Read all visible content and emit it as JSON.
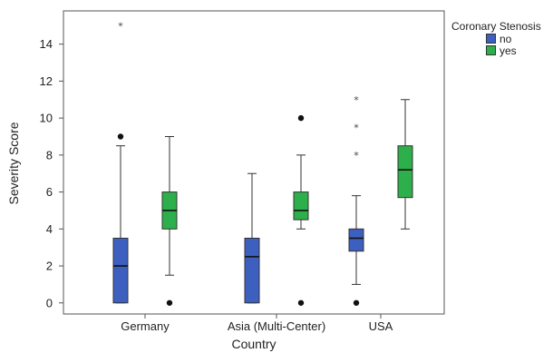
{
  "chart_data": {
    "type": "box",
    "xlabel": "Country",
    "ylabel": "Severity Score",
    "ylim": [
      -0.6,
      15.8
    ],
    "yticks": [
      0,
      2,
      4,
      6,
      8,
      10,
      12,
      14
    ],
    "categories": [
      "Germany",
      "Asia (Multi-Center)",
      "USA"
    ],
    "legend": {
      "title": "Coronary Stenosis",
      "position": "top-right",
      "items": [
        {
          "label": "no",
          "color": "#3d5fbf"
        },
        {
          "label": "yes",
          "color": "#2db04b"
        }
      ]
    },
    "series": [
      {
        "name": "no",
        "color": "#3d5fbf",
        "boxes": [
          {
            "category": "Germany",
            "min": 0,
            "q1": 0,
            "median": 2,
            "q3": 3.5,
            "max": 8.5,
            "outliers": [
              {
                "value": 9,
                "kind": "dot"
              },
              {
                "value": 15,
                "kind": "star"
              }
            ]
          },
          {
            "category": "Asia (Multi-Center)",
            "min": 0,
            "q1": 0,
            "median": 2.5,
            "q3": 3.5,
            "max": 7,
            "outliers": []
          },
          {
            "category": "USA",
            "min": 1,
            "q1": 2.8,
            "median": 3.5,
            "q3": 4,
            "max": 5.8,
            "outliers": [
              {
                "value": 0,
                "kind": "dot"
              },
              {
                "value": 8,
                "kind": "star"
              },
              {
                "value": 9.5,
                "kind": "star"
              },
              {
                "value": 11,
                "kind": "star"
              }
            ]
          }
        ]
      },
      {
        "name": "yes",
        "color": "#2db04b",
        "boxes": [
          {
            "category": "Germany",
            "min": 1.5,
            "q1": 4,
            "median": 5,
            "q3": 6,
            "max": 9,
            "outliers": [
              {
                "value": 0,
                "kind": "dot"
              }
            ]
          },
          {
            "category": "Asia (Multi-Center)",
            "min": 4,
            "q1": 4.5,
            "median": 5,
            "q3": 6,
            "max": 8,
            "outliers": [
              {
                "value": 0,
                "kind": "dot"
              },
              {
                "value": 10,
                "kind": "dot"
              }
            ]
          },
          {
            "category": "USA",
            "min": 4,
            "q1": 5.7,
            "median": 7.2,
            "q3": 8.5,
            "max": 11,
            "outliers": []
          }
        ]
      }
    ]
  }
}
